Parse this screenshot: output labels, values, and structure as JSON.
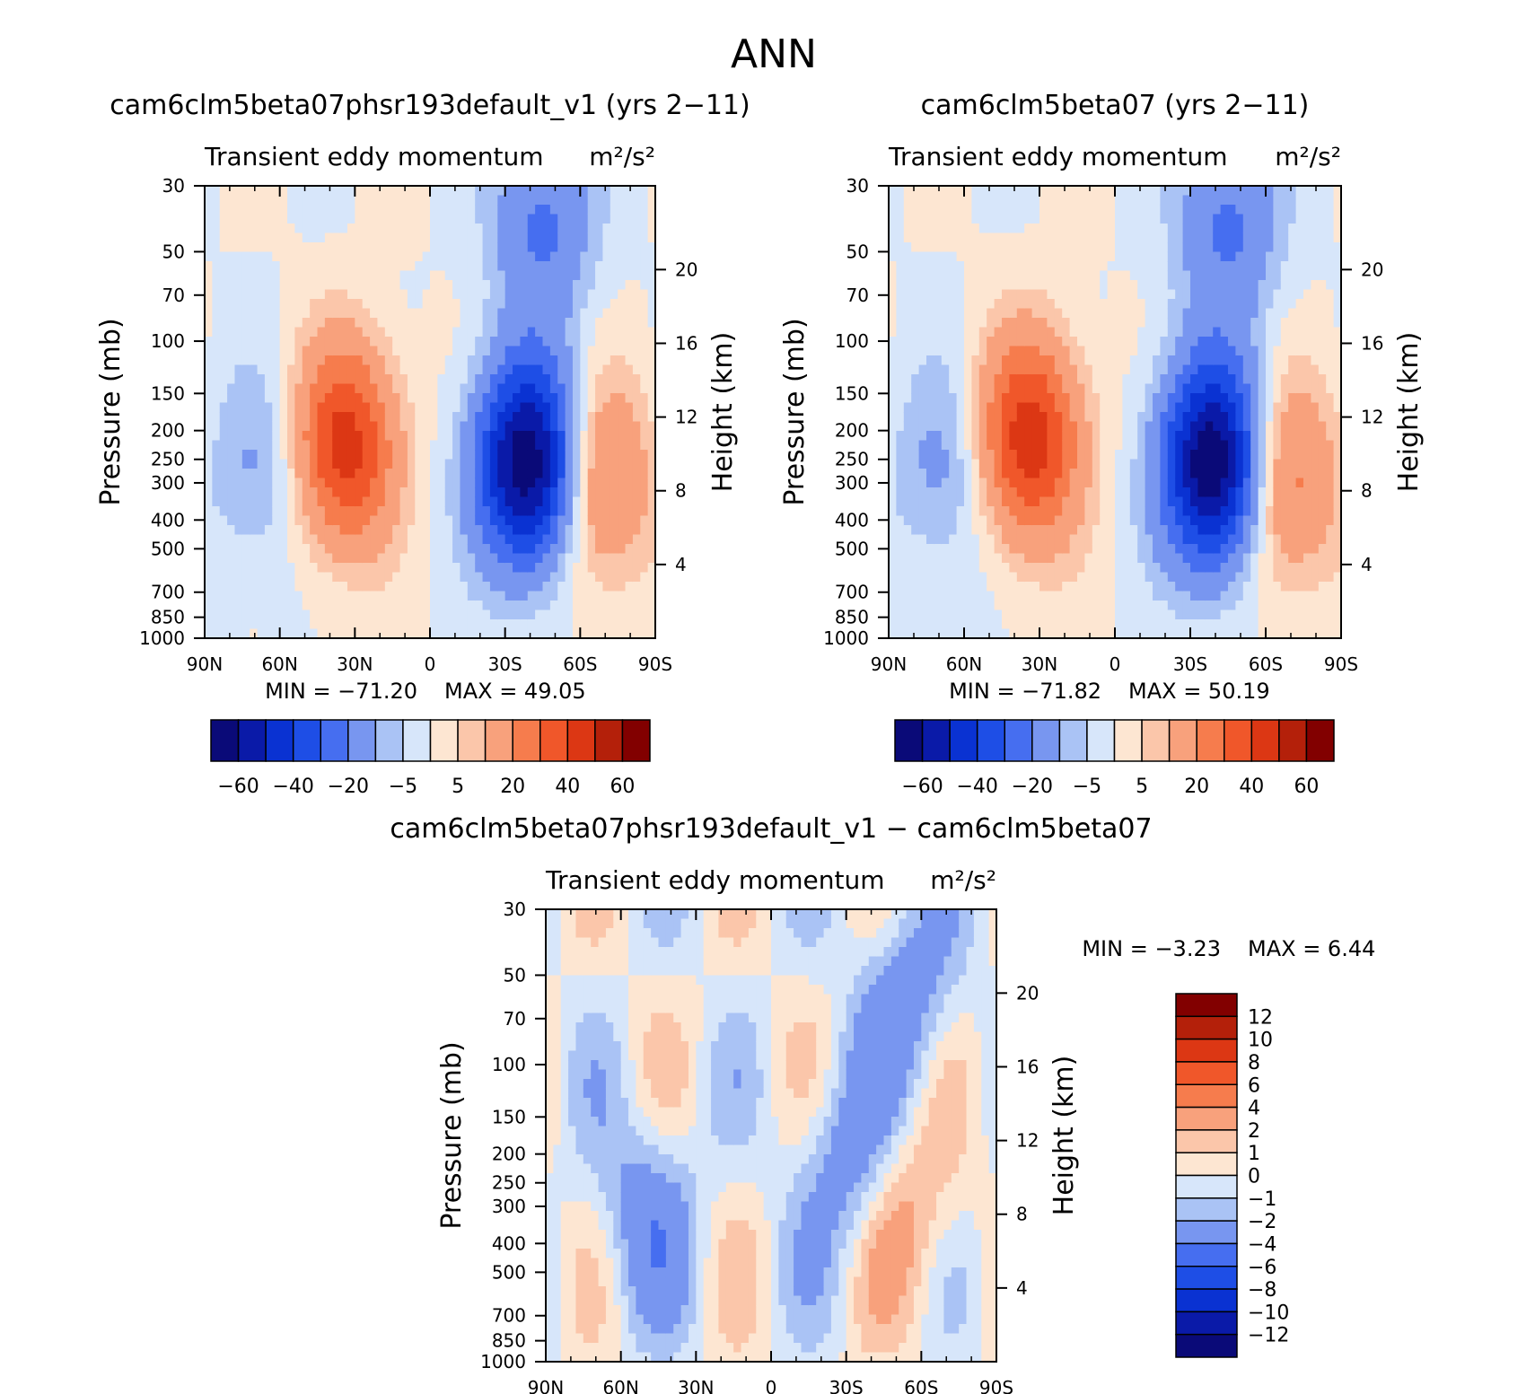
{
  "figure": {
    "title": "ANN"
  },
  "chart_data": [
    {
      "type": "heatmap",
      "title": "cam6clm5beta07phsr193default_v1 (yrs 2−11)",
      "subtitle": "Transient eddy momentum",
      "units": "m²/s²",
      "ylabel": "Pressure (mb)",
      "ylabel_right": "Height (km)",
      "xticks": [
        "90N",
        "60N",
        "30N",
        "0",
        "30S",
        "60S",
        "90S"
      ],
      "yticks": [
        "30",
        "50",
        "70",
        "100",
        "150",
        "200",
        "250",
        "300",
        "400",
        "500",
        "700",
        "850",
        "1000"
      ],
      "yticks_right": [
        "20",
        "16",
        "12",
        "8",
        "4"
      ],
      "ylim": [
        1000,
        30
      ],
      "min_text": "MIN = −71.20",
      "max_text": "MAX = 49.05",
      "min": -71.2,
      "max": 49.05,
      "colorbar_labels": [
        "−60",
        "−40",
        "−20",
        "−5",
        "5",
        "20",
        "40",
        "60"
      ],
      "features": [
        {
          "lat": 34,
          "p": 225,
          "value": 45
        },
        {
          "lat": -39,
          "p": 260,
          "value": -70
        },
        {
          "lat": -68,
          "p": 300,
          "value": 25
        },
        {
          "lat": 68,
          "p": 270,
          "value": -12
        },
        {
          "lat": -45,
          "p": 40,
          "value": -22
        }
      ]
    },
    {
      "type": "heatmap",
      "title": "cam6clm5beta07 (yrs 2−11)",
      "subtitle": "Transient eddy momentum",
      "units": "m²/s²",
      "ylabel": "Pressure (mb)",
      "ylabel_right": "Height (km)",
      "xticks": [
        "90N",
        "60N",
        "30N",
        "0",
        "30S",
        "60S",
        "90S"
      ],
      "yticks": [
        "30",
        "50",
        "70",
        "100",
        "150",
        "200",
        "250",
        "300",
        "400",
        "500",
        "700",
        "850",
        "1000"
      ],
      "yticks_right": [
        "20",
        "16",
        "12",
        "8",
        "4"
      ],
      "ylim": [
        1000,
        30
      ],
      "min_text": "MIN = −71.82",
      "max_text": "MAX = 50.19",
      "min": -71.82,
      "max": 50.19,
      "colorbar_labels": [
        "−60",
        "−40",
        "−20",
        "−5",
        "5",
        "20",
        "40",
        "60"
      ],
      "features": [
        {
          "lat": 34,
          "p": 215,
          "value": 47
        },
        {
          "lat": -39,
          "p": 260,
          "value": -71
        },
        {
          "lat": -68,
          "p": 300,
          "value": 26
        },
        {
          "lat": 68,
          "p": 270,
          "value": -13
        },
        {
          "lat": -45,
          "p": 40,
          "value": -22
        }
      ]
    },
    {
      "type": "heatmap",
      "title": "cam6clm5beta07phsr193default_v1 − cam6clm5beta07",
      "subtitle": "Transient eddy momentum",
      "units": "m²/s²",
      "ylabel": "Pressure (mb)",
      "ylabel_right": "Height (km)",
      "xticks": [
        "90N",
        "60N",
        "30N",
        "0",
        "30S",
        "60S",
        "90S"
      ],
      "yticks": [
        "30",
        "50",
        "70",
        "100",
        "150",
        "200",
        "250",
        "300",
        "400",
        "500",
        "700",
        "850",
        "1000"
      ],
      "yticks_right": [
        "20",
        "16",
        "12",
        "8",
        "4"
      ],
      "ylim": [
        1000,
        30
      ],
      "min_text": "MIN = −3.23",
      "max_text": "MAX = 6.44",
      "min": -3.23,
      "max": 6.44,
      "colorbar_labels": [
        "12",
        "10",
        "8",
        "6",
        "4",
        "2",
        "1",
        "0",
        "−1",
        "−2",
        "−4",
        "−6",
        "−8",
        "−10",
        "−12"
      ],
      "features": [
        {
          "lat": 50,
          "p": 330,
          "value": -3
        },
        {
          "lat": -30,
          "p": 220,
          "value": -3
        },
        {
          "lat": -55,
          "p": 330,
          "value": 2.5
        },
        {
          "lat": -55,
          "p": 60,
          "value": -3
        }
      ]
    }
  ],
  "palette": {
    "negative": [
      "#0a0a78",
      "#0a1aa8",
      "#0a32d2",
      "#1e4ee6",
      "#466ef0",
      "#7896f0",
      "#aac3f5",
      "#d7e6fa"
    ],
    "positive": [
      "#fde6d2",
      "#fbc6aa",
      "#f8a17c",
      "#f67c4d",
      "#f0572a",
      "#dc3714",
      "#b4200a",
      "#820000"
    ]
  }
}
